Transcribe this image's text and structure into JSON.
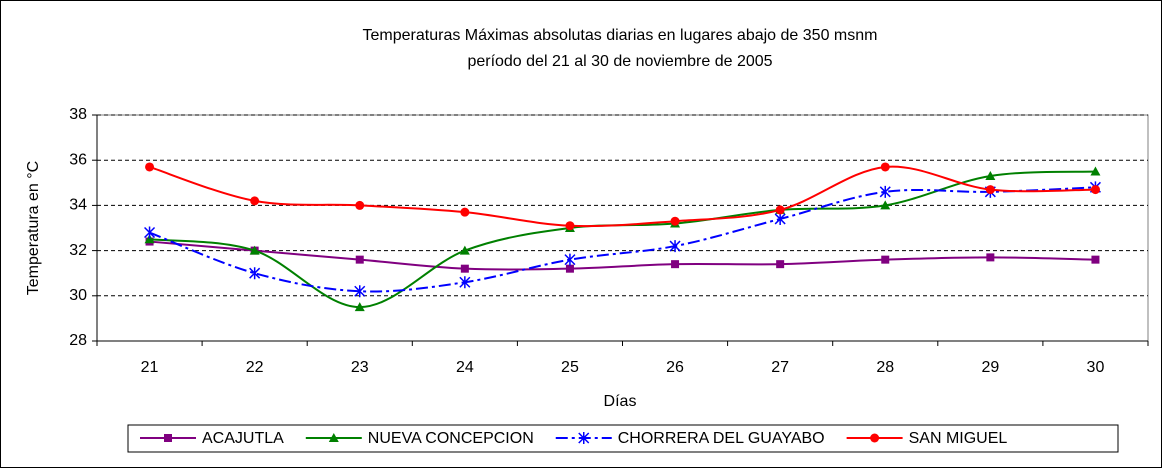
{
  "chart_data": {
    "type": "line",
    "title": "Temperaturas Máximas absolutas diarias en lugares abajo de 350 msnm",
    "subtitle": "período del 21 al 30 de noviembre de 2005",
    "x_label": "Días",
    "y_label": "Temperatura en °C",
    "categories": [
      "21",
      "22",
      "23",
      "24",
      "25",
      "26",
      "27",
      "28",
      "29",
      "30"
    ],
    "ylim": [
      28,
      38
    ],
    "yticks": [
      28,
      30,
      32,
      34,
      36,
      38
    ],
    "grid": true,
    "legend": "bottom",
    "series": [
      {
        "name": "ACAJUTLA",
        "color": "#800080",
        "marker": "square",
        "values": [
          32.4,
          32.0,
          31.6,
          31.2,
          31.2,
          31.4,
          31.4,
          31.6,
          31.7,
          31.6
        ]
      },
      {
        "name": "NUEVA CONCEPCION",
        "color": "#008000",
        "marker": "triangle",
        "values": [
          32.5,
          32.0,
          29.5,
          32.0,
          33.0,
          33.2,
          33.8,
          34.0,
          35.3,
          35.5
        ]
      },
      {
        "name": "CHORRERA DEL GUAYABO",
        "color": "#0000ff",
        "marker": "asterisk",
        "dash": "dashdot",
        "values": [
          32.8,
          31.0,
          30.2,
          30.6,
          31.6,
          32.2,
          33.4,
          34.6,
          34.6,
          34.8
        ]
      },
      {
        "name": "SAN MIGUEL",
        "color": "#ff0000",
        "marker": "circle",
        "values": [
          35.7,
          34.2,
          34.0,
          33.7,
          33.1,
          33.3,
          33.8,
          35.7,
          34.7,
          34.7
        ]
      }
    ]
  }
}
